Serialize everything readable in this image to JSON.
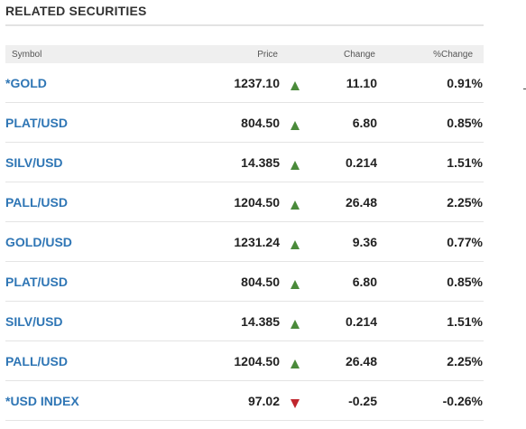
{
  "section": {
    "title": "RELATED SECURITIES"
  },
  "table": {
    "headers": {
      "symbol": "Symbol",
      "price": "Price",
      "change": "Change",
      "pct_change": "%Change"
    },
    "rows": [
      {
        "symbol": "*GOLD",
        "price": "1237.10",
        "direction": "up",
        "change": "11.10",
        "pct_change": "0.91%"
      },
      {
        "symbol": "PLAT/USD",
        "price": "804.50",
        "direction": "up",
        "change": "6.80",
        "pct_change": "0.85%"
      },
      {
        "symbol": "SILV/USD",
        "price": "14.385",
        "direction": "up",
        "change": "0.214",
        "pct_change": "1.51%"
      },
      {
        "symbol": "PALL/USD",
        "price": "1204.50",
        "direction": "up",
        "change": "26.48",
        "pct_change": "2.25%"
      },
      {
        "symbol": "GOLD/USD",
        "price": "1231.24",
        "direction": "up",
        "change": "9.36",
        "pct_change": "0.77%"
      },
      {
        "symbol": "PLAT/USD",
        "price": "804.50",
        "direction": "up",
        "change": "6.80",
        "pct_change": "0.85%"
      },
      {
        "symbol": "SILV/USD",
        "price": "14.385",
        "direction": "up",
        "change": "0.214",
        "pct_change": "1.51%"
      },
      {
        "symbol": "PALL/USD",
        "price": "1204.50",
        "direction": "up",
        "change": "26.48",
        "pct_change": "2.25%"
      },
      {
        "symbol": "*USD INDEX",
        "price": "97.02",
        "direction": "down",
        "change": "-0.25",
        "pct_change": "-0.26%"
      }
    ]
  },
  "colors": {
    "link": "#2f76b5",
    "up": "#4a8a3a",
    "down": "#c0262d",
    "header_bg": "#efefef"
  },
  "icons": {
    "up": "triangle-up-icon",
    "down": "triangle-down-icon"
  }
}
